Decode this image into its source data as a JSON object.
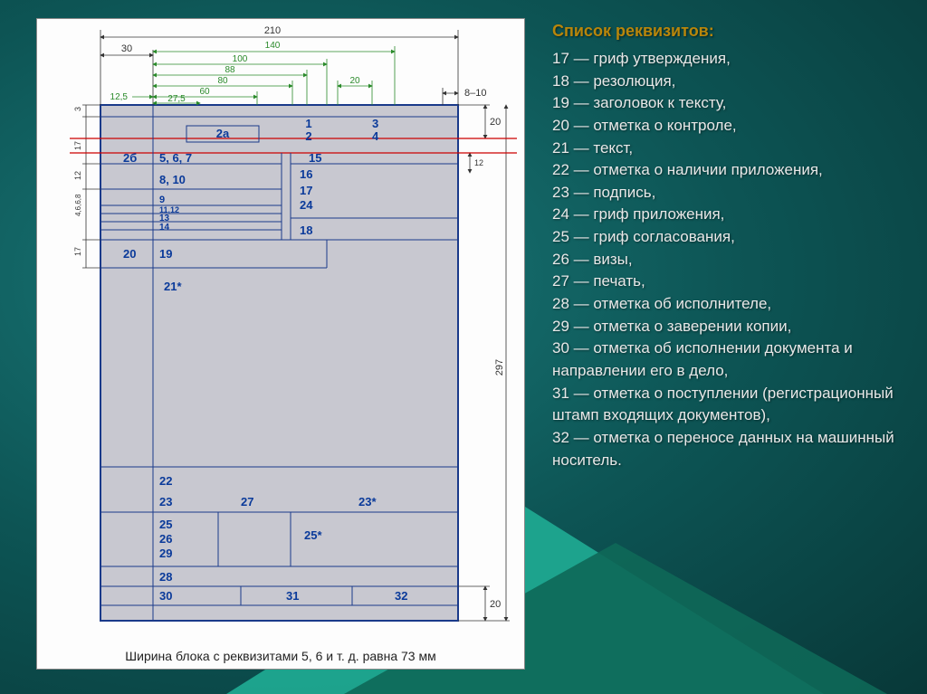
{
  "colors": {
    "bg_gradient_inner": "#1a7a7a",
    "bg_gradient_mid": "#0d5555",
    "bg_gradient_outer": "#083838",
    "panel_bg": "#fdfdfd",
    "page_fill": "#c8c8d0",
    "page_stroke": "#1a3a8a",
    "field_num_color": "#0a3a9a",
    "dim_green": "#2a8a2a",
    "dim_text": "#333333",
    "red_line": "#cc0000",
    "list_title_color": "#b8860b",
    "list_text_color": "#e8e8e8",
    "triangle1": "#1fa890",
    "triangle2": "#0e6858"
  },
  "diagram": {
    "caption": "Ширина блока с реквизитами 5, 6 и т. д. равна 73 мм",
    "page_width_mm": 210,
    "page_height_mm": 297,
    "dims_outer": {
      "top_width": "210",
      "left_margin": "30",
      "right_gap": "8–10",
      "top_margin_right": "20",
      "bottom_margin_right": "20",
      "height": "297"
    },
    "dims_green": [
      "140",
      "100",
      "88",
      "80",
      "60",
      "12,5",
      "27,5",
      "20"
    ],
    "dims_left": [
      "3",
      "17",
      "12",
      "4,6,6,8",
      "17"
    ],
    "dims_right_small": "12",
    "field_numbers_top": [
      "1",
      "2",
      "3",
      "4"
    ],
    "field_2a": "2а",
    "field_2b": "2б",
    "fields_block1": [
      "5, 6, 7",
      "8, 10",
      "9",
      "11,12",
      "13",
      "14"
    ],
    "fields_mid_right": [
      "15",
      "16",
      "17",
      "24",
      "18"
    ],
    "fields_row_20_19": [
      "20",
      "19"
    ],
    "field_21": "21*",
    "fields_bottom_block": [
      "22",
      "23",
      "27",
      "23*"
    ],
    "fields_25_26_29": [
      "25",
      "26",
      "29",
      "25*"
    ],
    "field_28": "28",
    "fields_last_row": [
      "30",
      "31",
      "32"
    ]
  },
  "list": {
    "title": "Список реквизитов:",
    "items": [
      {
        "n": "17",
        "t": "гриф утверждения,"
      },
      {
        "n": "18",
        "t": "резолюция,"
      },
      {
        "n": "19",
        "t": "заголовок к тексту,"
      },
      {
        "n": "20",
        "t": "отметка о контроле,"
      },
      {
        "n": "21",
        "t": "текст,"
      },
      {
        "n": "22",
        "t": "отметка о наличии приложения,"
      },
      {
        "n": "23",
        "t": "подпись,"
      },
      {
        "n": "24",
        "t": "гриф приложения,"
      },
      {
        "n": "25",
        "t": "гриф согласования,"
      },
      {
        "n": "26",
        "t": "визы,"
      },
      {
        "n": "27",
        "t": "печать,"
      },
      {
        "n": "28",
        "t": "отметка об исполнителе,"
      },
      {
        "n": "29",
        "t": "отметка о заверении копии,"
      },
      {
        "n": "30",
        "t": "отметка об исполнении документа и направлении его в дело,"
      },
      {
        "n": "31",
        "t": "отметка о поступлении (регистрационный штамп входящих документов),"
      },
      {
        "n": "32",
        "t": "отметка о переносе данных на машинный носитель."
      }
    ]
  }
}
